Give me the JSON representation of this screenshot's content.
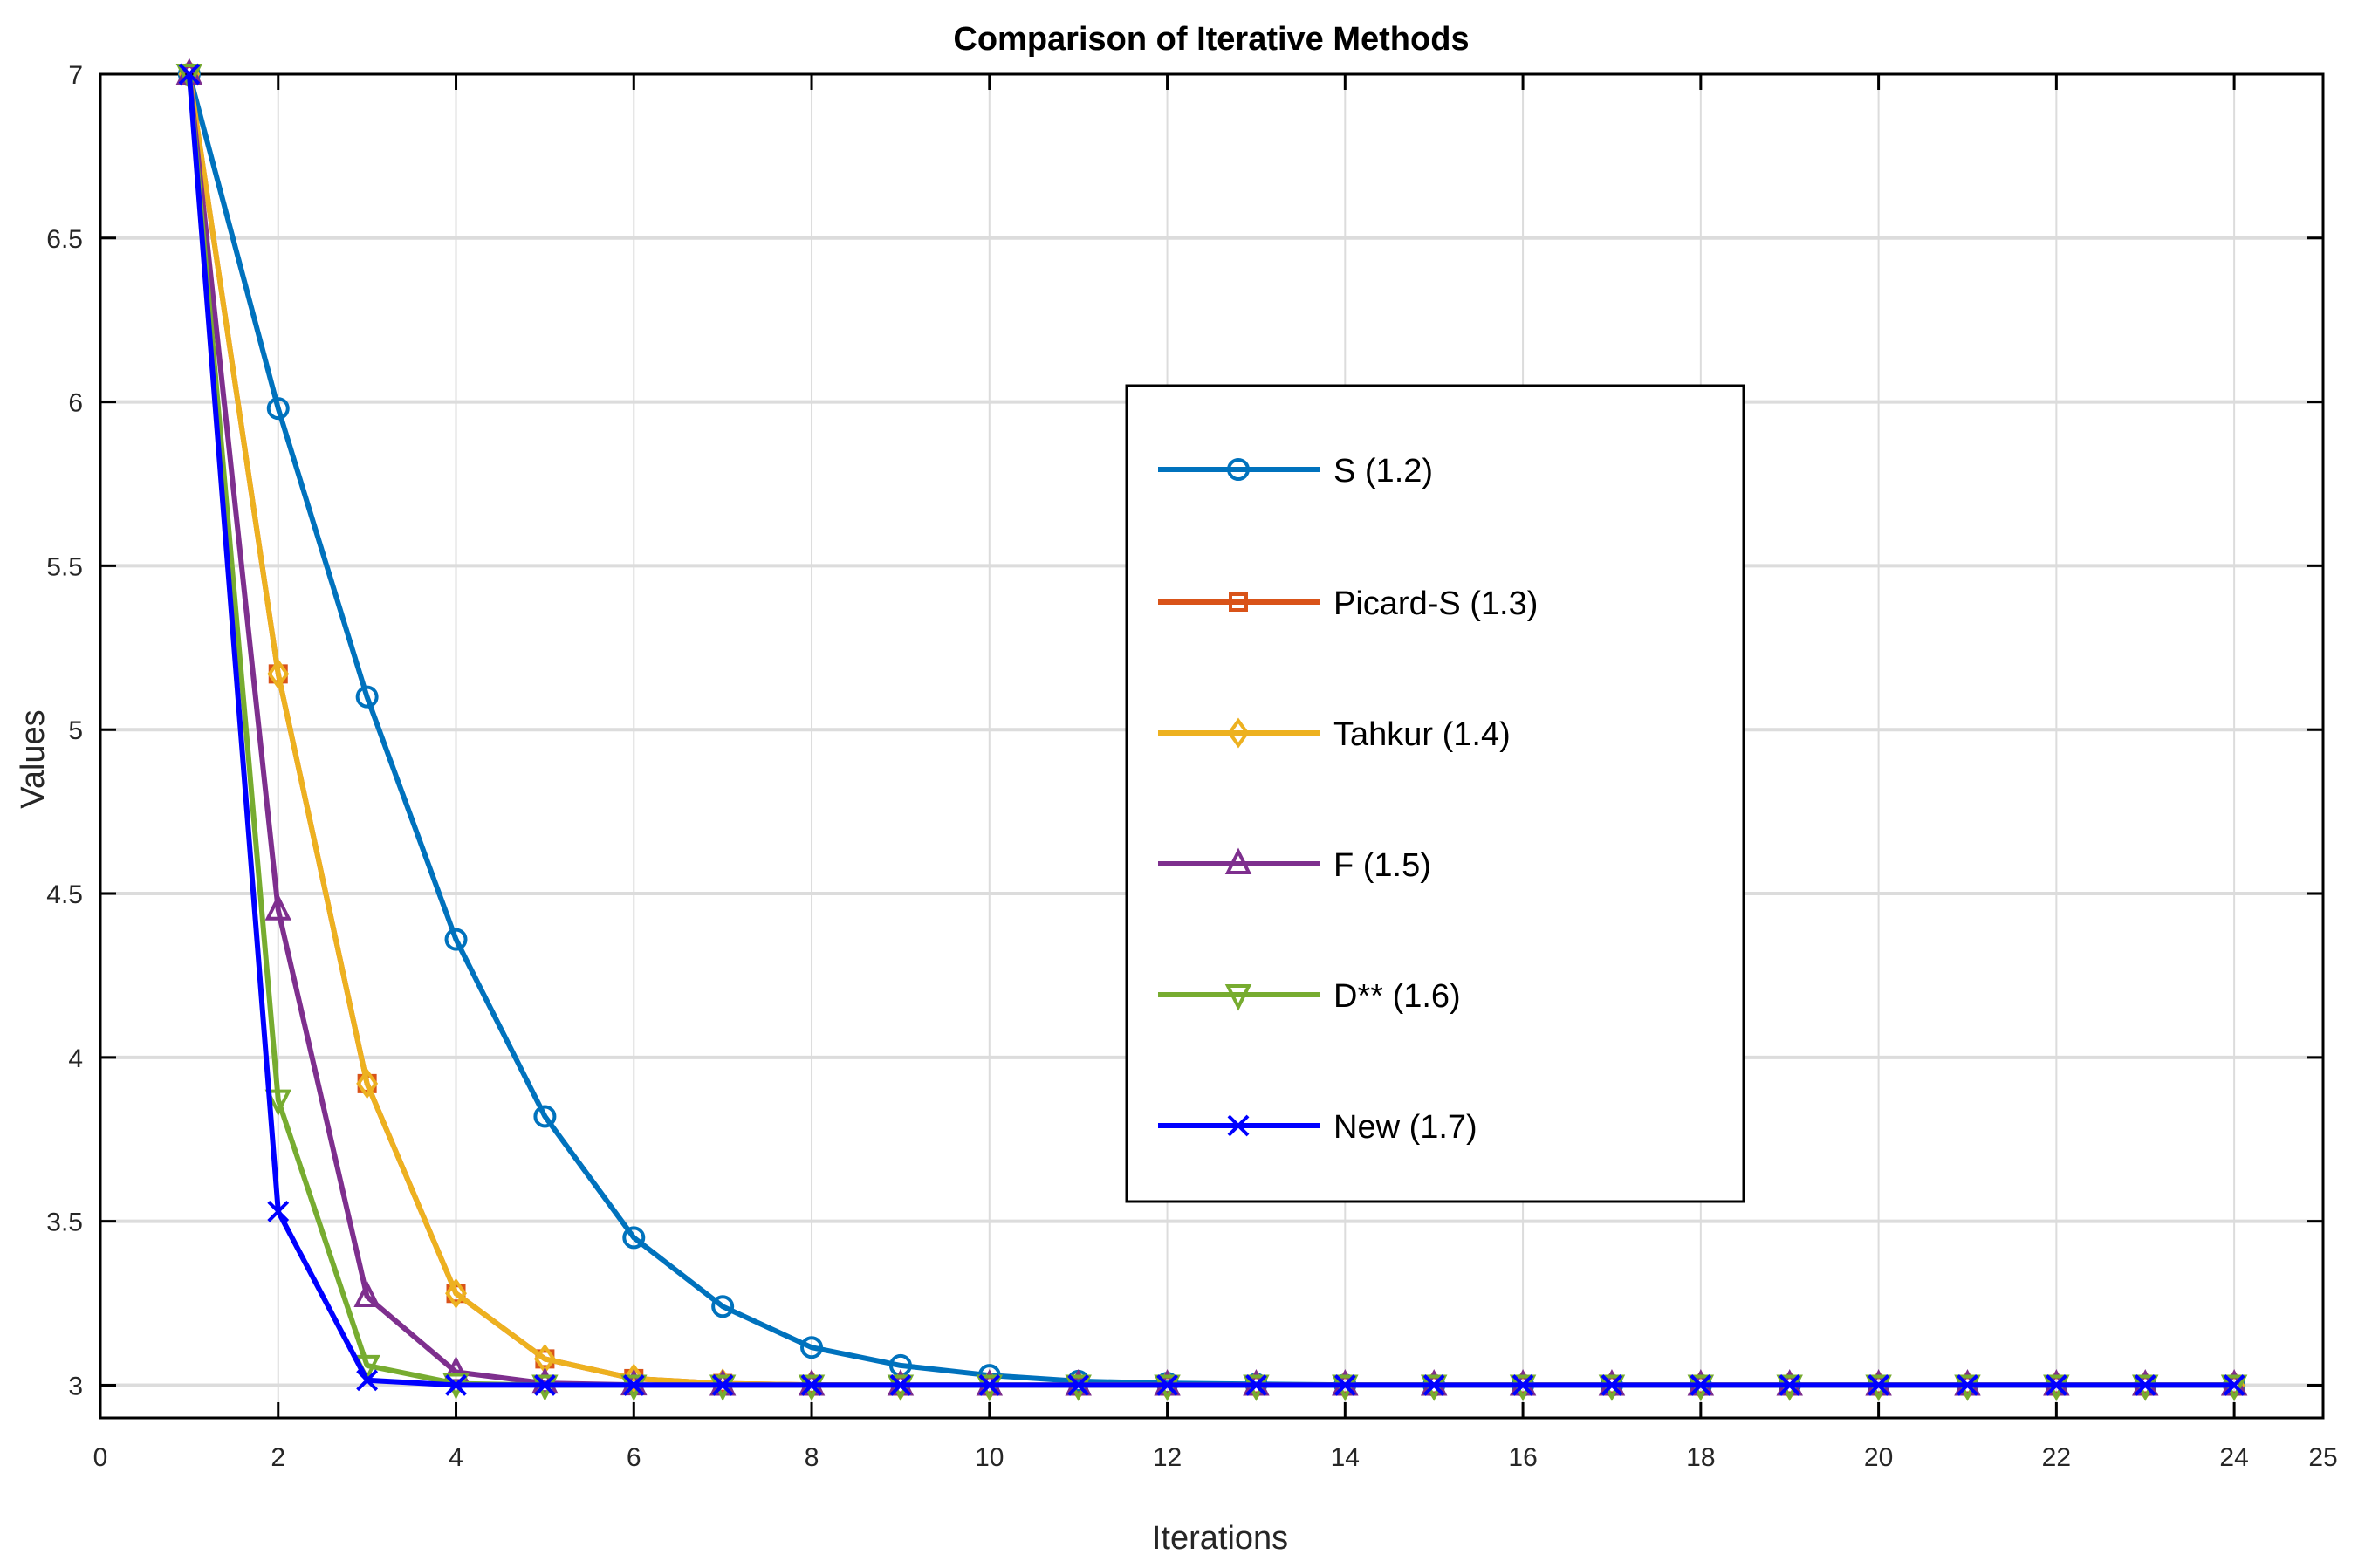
{
  "chart_data": {
    "type": "line",
    "title": "Comparison of Iterative Methods",
    "xlabel": "Iterations",
    "ylabel": "Values",
    "xlim": [
      0,
      25
    ],
    "ylim": [
      2.9,
      7
    ],
    "xticks": [
      0,
      2,
      4,
      6,
      8,
      10,
      12,
      14,
      16,
      18,
      20,
      22,
      24,
      25
    ],
    "yticks": [
      3,
      3.5,
      4,
      4.5,
      5,
      5.5,
      6,
      6.5,
      7
    ],
    "grid": true,
    "legend_position": "center-right",
    "x": [
      1,
      2,
      3,
      4,
      5,
      6,
      7,
      8,
      9,
      10,
      11,
      12,
      13,
      14,
      15,
      16,
      17,
      18,
      19,
      20,
      21,
      22,
      23,
      24
    ],
    "series": [
      {
        "name": "S (1.2)",
        "color": "#0072BD",
        "marker": "circle",
        "values": [
          7,
          5.98,
          5.1,
          4.36,
          3.82,
          3.45,
          3.24,
          3.115,
          3.06,
          3.03,
          3.012,
          3.006,
          3.003,
          3.001,
          3,
          3,
          3,
          3,
          3,
          3,
          3,
          3,
          3,
          3
        ]
      },
      {
        "name": "Picard-S (1.3)",
        "color": "#D95319",
        "marker": "square",
        "values": [
          7,
          5.17,
          3.92,
          3.28,
          3.08,
          3.02,
          3.005,
          3.001,
          3,
          3,
          3,
          3,
          3,
          3,
          3,
          3,
          3,
          3,
          3,
          3,
          3,
          3,
          3,
          3
        ]
      },
      {
        "name": "Tahkur (1.4)",
        "color": "#EDB120",
        "marker": "diamond",
        "values": [
          7,
          5.17,
          3.92,
          3.28,
          3.08,
          3.02,
          3.005,
          3.001,
          3,
          3,
          3,
          3,
          3,
          3,
          3,
          3,
          3,
          3,
          3,
          3,
          3,
          3,
          3,
          3
        ]
      },
      {
        "name": "F (1.5)",
        "color": "#7E2F8E",
        "marker": "triangle-up",
        "values": [
          7,
          4.45,
          3.27,
          3.04,
          3.006,
          3.001,
          3,
          3,
          3,
          3,
          3,
          3,
          3,
          3,
          3,
          3,
          3,
          3,
          3,
          3,
          3,
          3,
          3,
          3
        ]
      },
      {
        "name": "D** (1.6)",
        "color": "#77AC30",
        "marker": "triangle-down",
        "values": [
          7,
          3.87,
          3.06,
          3.005,
          3,
          3,
          3,
          3,
          3,
          3,
          3,
          3,
          3,
          3,
          3,
          3,
          3,
          3,
          3,
          3,
          3,
          3,
          3,
          3
        ]
      },
      {
        "name": "New (1.7)",
        "color": "#0000FF",
        "marker": "x",
        "values": [
          7,
          3.53,
          3.015,
          3.0,
          3,
          3,
          3,
          3,
          3,
          3,
          3,
          3,
          3,
          3,
          3,
          3,
          3,
          3,
          3,
          3,
          3,
          3,
          3,
          3
        ]
      }
    ]
  }
}
